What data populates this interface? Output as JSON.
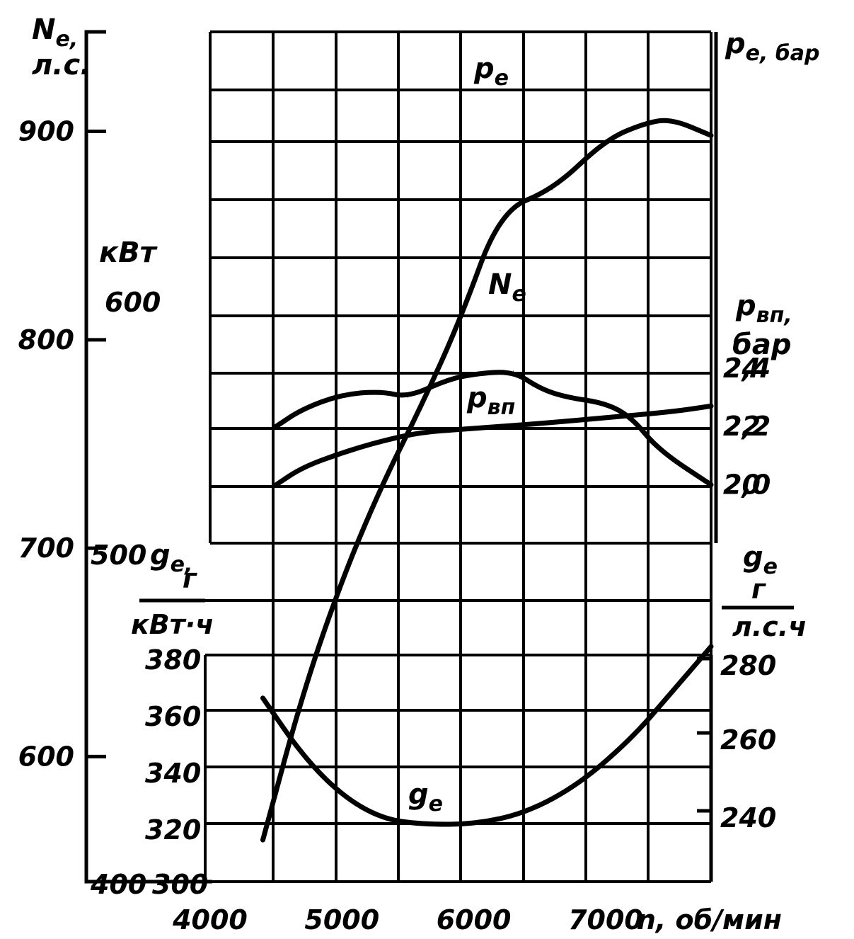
{
  "chart_data": {
    "type": "line",
    "x_axis": {
      "label": "n, об/мин",
      "range": [
        4000,
        7800
      ],
      "ticks": [
        4000,
        5000,
        6000,
        7000
      ],
      "tick_labels": [
        "4000",
        "5000",
        "6000",
        "7000"
      ]
    },
    "left_axes": {
      "ne_hp": {
        "title_line1": "Nе,",
        "title_line2": "л.с.",
        "ticks": [
          {
            "v": 900,
            "label": "900"
          },
          {
            "v": 800,
            "label": "800"
          },
          {
            "v": 700,
            "label": "700"
          },
          {
            "v": 600,
            "label": "600"
          }
        ]
      },
      "ne_kw": {
        "unit": "кВт",
        "ticks": [
          {
            "label": "600"
          },
          {
            "label": "500"
          },
          {
            "label": "400"
          }
        ]
      },
      "ge_kwh": {
        "title_line1": "gе,",
        "title_line2": "г",
        "title_line3": "кВт·ч",
        "ticks": [
          "380",
          "360",
          "340",
          "320",
          "300"
        ]
      }
    },
    "right_axes": {
      "pe": {
        "title": "pе, бар",
        "range": [
          18,
          24
        ],
        "ticks": [
          "24",
          "22",
          "20"
        ]
      },
      "pvp": {
        "title_line1": "pвп,",
        "title_line2": "бар",
        "range": [
          1.8,
          2.4
        ],
        "ticks": [
          "2,4",
          "2,2",
          "2,0"
        ]
      },
      "ge_hph": {
        "title_line1": "gе",
        "title_line2": "г",
        "title_line3": "л.с.ч",
        "ticks": [
          "280",
          "260",
          "240"
        ]
      }
    },
    "series": [
      {
        "name": "pе",
        "unit": "бар",
        "x": [
          4500,
          4700,
          5000,
          5300,
          5500,
          5800,
          6000,
          6300,
          6500,
          6700,
          7000,
          7200,
          7400,
          7800
        ],
        "y": [
          22.0,
          22.6,
          23.1,
          23.2,
          23.0,
          23.6,
          23.8,
          23.9,
          23.3,
          23.0,
          22.8,
          22.3,
          21.2,
          20.0
        ]
      },
      {
        "name": "Nе",
        "unit": "л.с.",
        "x": [
          4400,
          4700,
          5000,
          5300,
          5600,
          5900,
          6200,
          6600,
          7000,
          7300,
          7500,
          7800
        ],
        "y": [
          560,
          630,
          685,
          730,
          768,
          810,
          862,
          872,
          896,
          904,
          906,
          898
        ]
      },
      {
        "name": "pвп",
        "unit": "бар",
        "x": [
          4500,
          4700,
          5000,
          5300,
          5600,
          5900,
          6200,
          6500,
          7000,
          7500,
          7800
        ],
        "y": [
          2.0,
          2.06,
          2.11,
          2.15,
          2.18,
          2.19,
          2.2,
          2.21,
          2.23,
          2.25,
          2.27
        ]
      },
      {
        "name": "gе",
        "unit": "г/(кВт·ч)",
        "x": [
          4400,
          4700,
          5000,
          5300,
          5600,
          6000,
          6400,
          6800,
          7200,
          7500,
          7800
        ],
        "y": [
          364,
          344,
          330,
          322,
          320,
          320,
          324,
          334,
          350,
          366,
          382
        ]
      }
    ],
    "curve_labels": {
      "pe": "pе",
      "ne": "Nе",
      "pvp": "pвп",
      "ge": "gе"
    }
  }
}
